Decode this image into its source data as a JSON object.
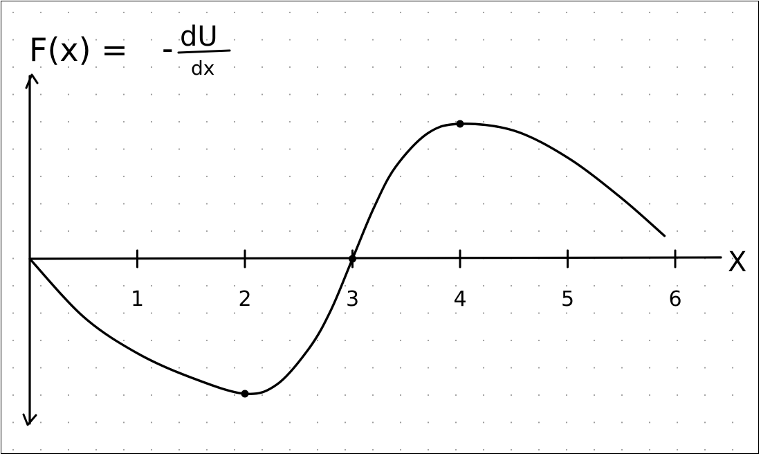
{
  "chart_data": {
    "type": "line",
    "title": "F(x) = -dU/dx",
    "title_parts": {
      "lhs": "F(x) =",
      "minus": "-",
      "numerator": "dU",
      "denominator": "dx"
    },
    "xlabel": "X",
    "ylabel": "",
    "x_ticks": [
      1,
      2,
      3,
      4,
      5,
      6
    ],
    "x_tick_labels": [
      "1",
      "2",
      "3",
      "4",
      "5",
      "6"
    ],
    "xlim": [
      0,
      6.5
    ],
    "ylim": [
      -1.2,
      1.4
    ],
    "grid": "dotted",
    "series": [
      {
        "x": [
          0,
          0.5,
          1,
          1.5,
          2,
          2.3,
          2.6,
          2.8,
          3,
          3.2,
          3.4,
          3.7,
          4,
          4.5,
          5,
          5.5,
          5.9
        ],
        "y": [
          0,
          -0.43,
          -0.7,
          -0.88,
          -1.0,
          -0.93,
          -0.66,
          -0.38,
          0,
          0.38,
          0.68,
          0.93,
          1.0,
          0.95,
          0.75,
          0.45,
          0.17
        ]
      }
    ],
    "marked_points": [
      {
        "x": 2,
        "y": -1.0
      },
      {
        "x": 3,
        "y": 0
      },
      {
        "x": 4,
        "y": 1.0
      }
    ]
  }
}
